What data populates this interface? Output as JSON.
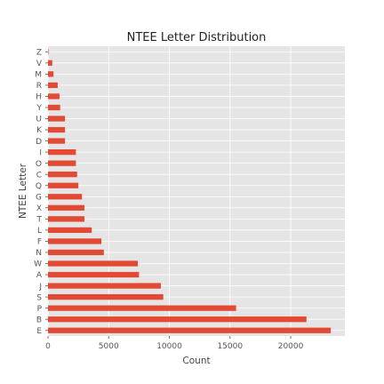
{
  "chart_data": {
    "type": "bar",
    "orientation": "horizontal",
    "title": "NTEE Letter Distribution",
    "xlabel": "Count",
    "ylabel": "NTEE Letter",
    "categories": [
      "E",
      "B",
      "P",
      "S",
      "J",
      "A",
      "W",
      "N",
      "F",
      "L",
      "T",
      "X",
      "G",
      "Q",
      "C",
      "O",
      "I",
      "D",
      "K",
      "U",
      "Y",
      "H",
      "R",
      "M",
      "V",
      "Z"
    ],
    "values": [
      23300,
      21300,
      15500,
      9500,
      9300,
      7500,
      7400,
      4600,
      4400,
      3600,
      3000,
      3000,
      2800,
      2500,
      2400,
      2300,
      2300,
      1400,
      1400,
      1400,
      1000,
      950,
      800,
      450,
      350,
      30
    ],
    "xlim": [
      0,
      24465
    ],
    "xticks": [
      0,
      5000,
      10000,
      15000,
      20000
    ],
    "xtick_labels": [
      "0",
      "5000",
      "10000",
      "15000",
      "20000"
    ],
    "grid": true,
    "colors": {
      "bar": "#E24A33",
      "plot_background": "#E5E5E5",
      "grid": "#FFFFFF"
    }
  }
}
